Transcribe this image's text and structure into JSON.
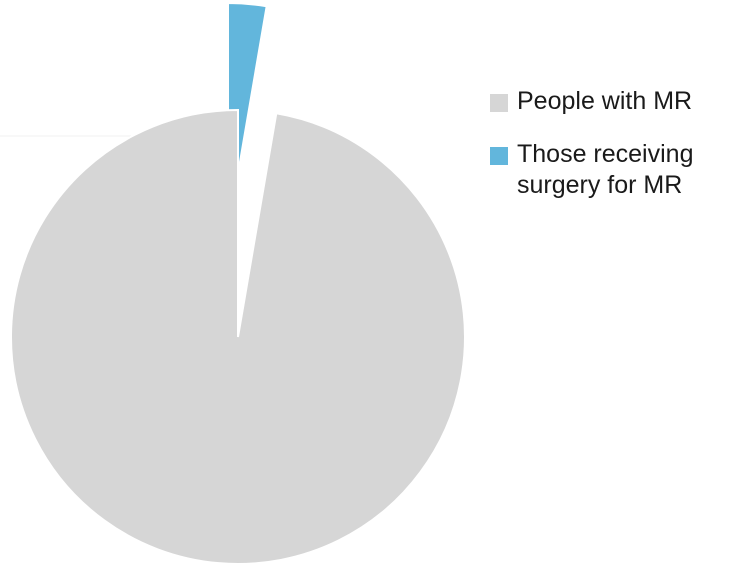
{
  "chart_data": {
    "type": "pie",
    "title": "",
    "slices": [
      {
        "label": "People with MR",
        "value": 97.3,
        "color": "#d6d6d6"
      },
      {
        "label": "Those receiving surgery for MR",
        "value": 2.7,
        "color": "#62b6dc"
      }
    ],
    "exploded": true,
    "legend_position": "right"
  }
}
